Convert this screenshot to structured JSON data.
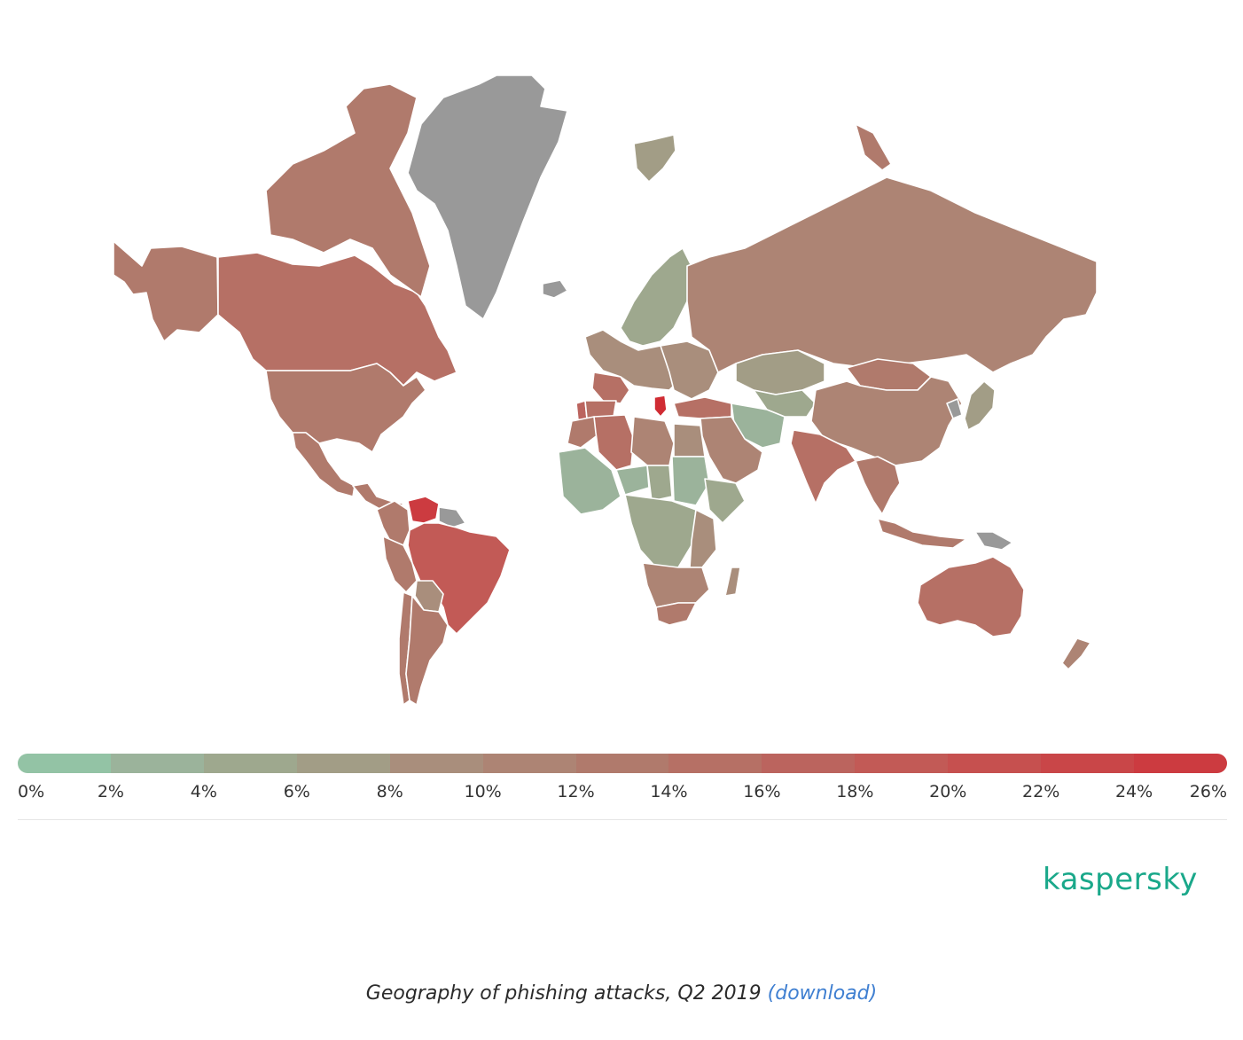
{
  "legend": {
    "ticks": [
      "0%",
      "2%",
      "4%",
      "6%",
      "8%",
      "10%",
      "12%",
      "14%",
      "16%",
      "18%",
      "20%",
      "22%",
      "24%",
      "26%"
    ],
    "scale_min": 0,
    "scale_max": 26,
    "unit": "%",
    "colors": [
      "#93c3a5",
      "#9bb39b",
      "#9ea88e",
      "#a29d86",
      "#a98e7c",
      "#ad8474",
      "#b07a6c",
      "#b67065",
      "#bb645e",
      "#c25a56",
      "#c6504f",
      "#c94648",
      "#cc3b40",
      "#d02c33"
    ]
  },
  "no_data_color": "#999999",
  "brand": {
    "logo_text": "kaspersky",
    "color": "#1aa88a"
  },
  "caption": {
    "text": "Geography of phishing attacks, Q2 2019",
    "link": "(download)"
  },
  "map_data": {
    "type": "choropleth",
    "regions": [
      {
        "name": "Greenland",
        "value": null
      },
      {
        "name": "Alaska (United States)",
        "value": 13
      },
      {
        "name": "Canada",
        "value": 14
      },
      {
        "name": "Canadian Arctic Islands",
        "value": 13
      },
      {
        "name": "United States",
        "value": 13
      },
      {
        "name": "Mexico",
        "value": 13
      },
      {
        "name": "Central America",
        "value": 13
      },
      {
        "name": "Venezuela",
        "value": 25
      },
      {
        "name": "Colombia",
        "value": 12
      },
      {
        "name": "Guianas",
        "value": null
      },
      {
        "name": "Brazil",
        "value": 19
      },
      {
        "name": "Peru",
        "value": 12
      },
      {
        "name": "Bolivia",
        "value": 9
      },
      {
        "name": "Argentina",
        "value": 12
      },
      {
        "name": "Chile",
        "value": 12
      },
      {
        "name": "Iceland",
        "value": null
      },
      {
        "name": "Svalbard",
        "value": 6
      },
      {
        "name": "Scandinavia",
        "value": 5
      },
      {
        "name": "Western Europe",
        "value": 9
      },
      {
        "name": "Portugal",
        "value": 17
      },
      {
        "name": "Spain",
        "value": 15
      },
      {
        "name": "France",
        "value": 15
      },
      {
        "name": "Greece",
        "value": 26
      },
      {
        "name": "Eastern Europe",
        "value": 8
      },
      {
        "name": "Russia",
        "value": 10
      },
      {
        "name": "Novaya Zemlya (Russia)",
        "value": 12
      },
      {
        "name": "Turkey",
        "value": 15
      },
      {
        "name": "Kazakhstan",
        "value": 6
      },
      {
        "name": "Central Asia",
        "value": 5
      },
      {
        "name": "Iran",
        "value": 3
      },
      {
        "name": "Arabian Peninsula",
        "value": 10
      },
      {
        "name": "India",
        "value": 15
      },
      {
        "name": "China",
        "value": 10
      },
      {
        "name": "Mongolia",
        "value": 13
      },
      {
        "name": "Korea",
        "value": null
      },
      {
        "name": "Japan",
        "value": 6
      },
      {
        "name": "Southeast Asia",
        "value": 12
      },
      {
        "name": "Indonesia",
        "value": 13
      },
      {
        "name": "Papua New Guinea",
        "value": null
      },
      {
        "name": "Australia",
        "value": 15
      },
      {
        "name": "New Zealand",
        "value": 11
      },
      {
        "name": "Algeria",
        "value": 14
      },
      {
        "name": "Morocco",
        "value": 13
      },
      {
        "name": "Libya",
        "value": 10
      },
      {
        "name": "Egypt",
        "value": 9
      },
      {
        "name": "West Africa",
        "value": 3
      },
      {
        "name": "Niger",
        "value": 2
      },
      {
        "name": "Chad",
        "value": 4
      },
      {
        "name": "Sudan",
        "value": 3
      },
      {
        "name": "Horn of Africa",
        "value": 4
      },
      {
        "name": "Central Africa",
        "value": 5
      },
      {
        "name": "East Africa",
        "value": 8
      },
      {
        "name": "Southern Africa",
        "value": 11
      },
      {
        "name": "South Africa",
        "value": 13
      },
      {
        "name": "Madagascar",
        "value": 9
      }
    ]
  }
}
